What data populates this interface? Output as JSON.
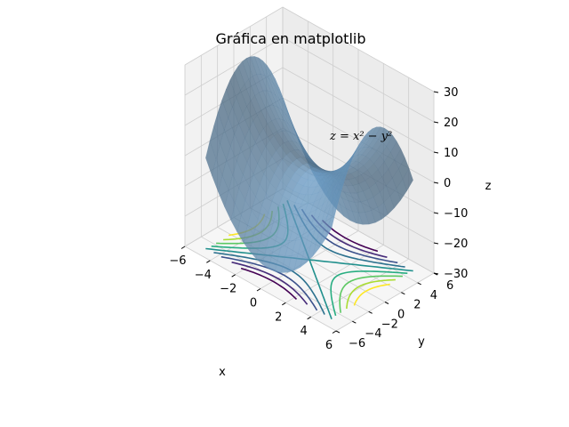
{
  "chart_data": {
    "type": "surface3d",
    "title": "Gráfica en matplotlib",
    "annotation": "z = x² − y²",
    "xlabel": "x",
    "ylabel": "y",
    "zlabel": "z",
    "xlim": [
      -6,
      6
    ],
    "ylim": [
      -6,
      6
    ],
    "zlim": [
      -30,
      30
    ],
    "xticks": [
      -6,
      -4,
      -2,
      0,
      2,
      4,
      6
    ],
    "yticks": [
      -6,
      -4,
      -2,
      0,
      2,
      4,
      6
    ],
    "zticks": [
      -30,
      -20,
      -10,
      0,
      10,
      20,
      30
    ],
    "xtick_labels": [
      "−6",
      "−4",
      "−2",
      "0",
      "2",
      "4",
      "6"
    ],
    "ytick_labels": [
      "−6",
      "−4",
      "−2",
      "0",
      "2",
      "4",
      "6"
    ],
    "ztick_labels": [
      "−30",
      "−20",
      "−10",
      "0",
      "10",
      "20",
      "30"
    ],
    "surface": {
      "function": "x^2 - y^2",
      "x_range": [
        -5,
        5
      ],
      "y_range": [
        -5,
        5
      ],
      "color": "#6a9dc8",
      "alpha": 0.75
    },
    "contours": {
      "projection_plane": "z=-30",
      "levels": [
        -20,
        -15,
        -10,
        -5,
        0,
        5,
        10,
        15,
        20
      ],
      "colormap": "viridis"
    },
    "grid": true
  }
}
